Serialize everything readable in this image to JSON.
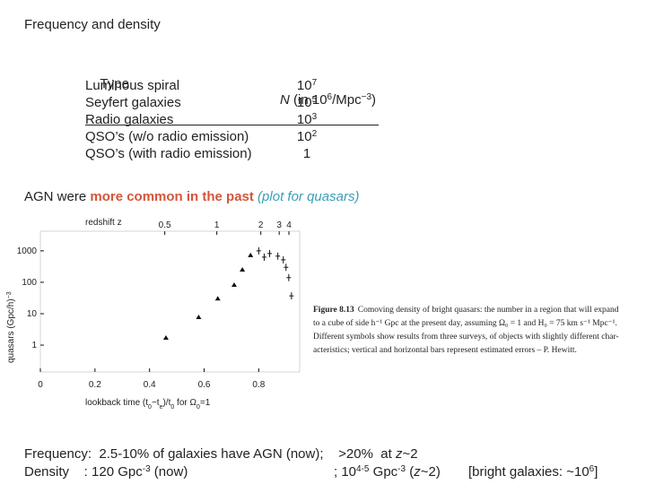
{
  "title": "Frequency and density",
  "table": {
    "header": {
      "type": "Type",
      "n_symbol": "N",
      "n_unit_a": " (in 10",
      "n_exp_a": "6",
      "n_unit_b": "/Mpc",
      "n_exp_b": "−3",
      "n_close": ")"
    },
    "rows": [
      {
        "type": "Luminous spiral",
        "base": "10",
        "exp": "7"
      },
      {
        "type": "Seyfert galaxies",
        "base": "10",
        "exp": "5"
      },
      {
        "type": "Radio galaxies",
        "base": "10",
        "exp": "3"
      },
      {
        "type": "QSO’s (w/o radio emission)",
        "base": "10",
        "exp": "2"
      },
      {
        "type": "QSO’s (with radio emission)",
        "base": "1"
      }
    ]
  },
  "sentence": {
    "lead": "AGN were ",
    "emphasis": "more common in the past",
    "note": " (plot for quasars)"
  },
  "chart_data": {
    "type": "scatter",
    "top_label": "redshift  z",
    "zticks": [
      0.5,
      1,
      2,
      3,
      4
    ],
    "xlabel_parts": [
      {
        "text": "lookback  time  (t"
      },
      {
        "text": "0",
        "sub": true
      },
      {
        "text": "−t"
      },
      {
        "text": "e",
        "sub": true
      },
      {
        "text": ")/t"
      },
      {
        "text": "0",
        "sub": true
      },
      {
        "text": "  for  Ω"
      },
      {
        "text": "0",
        "sub": true
      },
      {
        "text": "=1"
      }
    ],
    "ylabel": "quasars  (Gpc/h)",
    "ylabel_exp": "−3",
    "xlim": [
      0,
      0.95
    ],
    "xticks": [
      0,
      0.2,
      0.4,
      0.6,
      0.8
    ],
    "ylim": [
      0.14,
      4200
    ],
    "log_y": true,
    "yticks": [
      1,
      10,
      100,
      1000
    ],
    "color": "#111111",
    "series": [
      {
        "marker": "triangle",
        "x": [
          0.46,
          0.58,
          0.65,
          0.71,
          0.74,
          0.77
        ],
        "values": [
          1.7,
          7.7,
          30,
          82,
          250,
          720
        ]
      },
      {
        "marker": "cross",
        "x": [
          0.8,
          0.82,
          0.84,
          0.87,
          0.89,
          0.9,
          0.91,
          0.92
        ],
        "values": [
          1000,
          630,
          820,
          680,
          520,
          300,
          140,
          37
        ]
      }
    ],
    "caption": {
      "label": "Figure 8.13",
      "lines": [
        "Comoving density of bright quasars: the number in a region that will expand",
        "to a cube of side h⁻¹ Gpc at the present day, assuming Ω₀ = 1 and H₀ = 75 km s⁻¹ Mpc⁻¹.",
        "Different symbols show results from three surveys, of objects with slightly different char-",
        "acteristics; vertical and horizontal bars represent estimated errors – P. Hewitt."
      ]
    }
  },
  "footer": {
    "line1": {
      "a": "Frequency:  2.5-10% of galaxies have AGN (now);    >20%  at ",
      "z": "z",
      "b": "~2"
    },
    "line2": {
      "a": "Density    : 120 Gpc",
      "a_exp": "-3",
      "a_end": " (now)",
      "b": "; 10",
      "b_exp": "4-5",
      "b_mid": " Gpc",
      "b_exp2": "-3",
      "b_open": " (",
      "z": "z",
      "b_end": "~2)",
      "c": "[bright galaxies: ~10",
      "c_exp": "6",
      "c_end": "]"
    }
  }
}
